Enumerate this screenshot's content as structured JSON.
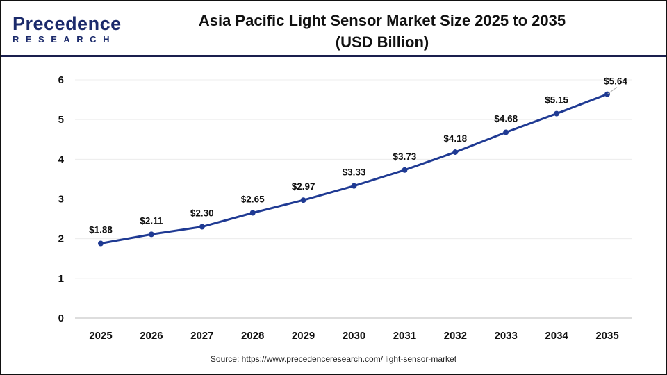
{
  "logo": {
    "brand": "Precedence",
    "sub": "RESEARCH"
  },
  "source": "Source: https://www.precedenceresearch.com/ light-sensor-market",
  "chart_data": {
    "type": "line",
    "title": "Asia Pacific Light Sensor Market Size 2025 to 2035",
    "subtitle": "(USD Billion)",
    "categories": [
      "2025",
      "2026",
      "2027",
      "2028",
      "2029",
      "2030",
      "2031",
      "2032",
      "2033",
      "2034",
      "2035"
    ],
    "series": [
      {
        "values": [
          1.88,
          2.11,
          2.3,
          2.65,
          2.97,
          3.33,
          3.73,
          4.18,
          4.68,
          5.15,
          5.64
        ],
        "color": "#1f3a93"
      }
    ],
    "data_labels": [
      "$1.88",
      "$2.11",
      "$2.30",
      "$2.65",
      "$2.97",
      "$3.33",
      "$3.73",
      "$4.18",
      "$4.68",
      "$5.15",
      "$5.64"
    ],
    "yticks": [
      0,
      1,
      2,
      3,
      4,
      5,
      6
    ],
    "ylim": [
      0,
      6
    ],
    "grid": true,
    "xlabel": "",
    "ylabel": ""
  }
}
